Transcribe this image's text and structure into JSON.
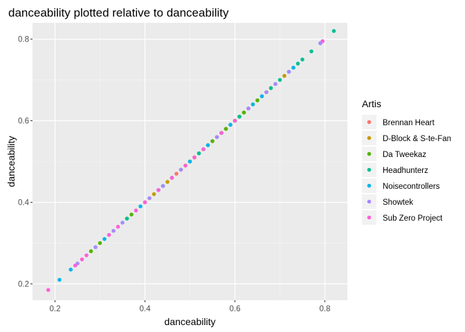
{
  "chart_data": {
    "type": "scatter",
    "title": "danceability plotted relative to danceability",
    "xlabel": "danceability",
    "ylabel": "danceability",
    "xlim": [
      0.15,
      0.85
    ],
    "ylim": [
      0.16,
      0.84
    ],
    "x_ticks": [
      0.2,
      0.4,
      0.6,
      0.8
    ],
    "y_ticks": [
      0.2,
      0.4,
      0.6,
      0.8
    ],
    "x_tick_labels": [
      "0.2",
      "0.4",
      "0.6",
      "0.8"
    ],
    "y_tick_labels": [
      "0.2",
      "0.4",
      "0.6",
      "0.8"
    ],
    "grid": true,
    "legend_title": "Artis",
    "legend_position": "right",
    "series": [
      {
        "name": "Brennan Heart",
        "color": "#F8766D",
        "points": [
          [
            0.4,
            0.4
          ],
          [
            0.47,
            0.47
          ],
          [
            0.52,
            0.52
          ],
          [
            0.55,
            0.55
          ],
          [
            0.58,
            0.58
          ],
          [
            0.61,
            0.61
          ],
          [
            0.63,
            0.63
          ],
          [
            0.66,
            0.66
          ],
          [
            0.68,
            0.68
          ],
          [
            0.5,
            0.5
          ]
        ]
      },
      {
        "name": "D-Block & S-te-Fan",
        "color": "#C49A00",
        "points": [
          [
            0.42,
            0.42
          ],
          [
            0.45,
            0.45
          ],
          [
            0.49,
            0.49
          ],
          [
            0.51,
            0.51
          ],
          [
            0.53,
            0.53
          ],
          [
            0.56,
            0.56
          ],
          [
            0.57,
            0.57
          ],
          [
            0.59,
            0.59
          ],
          [
            0.6,
            0.6
          ],
          [
            0.62,
            0.62
          ],
          [
            0.64,
            0.64
          ],
          [
            0.65,
            0.65
          ],
          [
            0.67,
            0.67
          ],
          [
            0.69,
            0.69
          ],
          [
            0.71,
            0.71
          ],
          [
            0.73,
            0.73
          ],
          [
            0.54,
            0.54
          ],
          [
            0.48,
            0.48
          ]
        ]
      },
      {
        "name": "Da Tweekaz",
        "color": "#53B400",
        "points": [
          [
            0.28,
            0.28
          ],
          [
            0.3,
            0.3
          ],
          [
            0.36,
            0.36
          ],
          [
            0.37,
            0.37
          ],
          [
            0.46,
            0.46
          ],
          [
            0.5,
            0.5
          ],
          [
            0.55,
            0.55
          ],
          [
            0.58,
            0.58
          ],
          [
            0.6,
            0.6
          ],
          [
            0.61,
            0.61
          ],
          [
            0.62,
            0.62
          ],
          [
            0.65,
            0.65
          ]
        ]
      },
      {
        "name": "Headhunterz",
        "color": "#00C094",
        "points": [
          [
            0.36,
            0.36
          ],
          [
            0.44,
            0.44
          ],
          [
            0.52,
            0.52
          ],
          [
            0.57,
            0.57
          ],
          [
            0.61,
            0.61
          ],
          [
            0.7,
            0.7
          ],
          [
            0.72,
            0.72
          ],
          [
            0.74,
            0.74
          ],
          [
            0.75,
            0.75
          ],
          [
            0.77,
            0.77
          ],
          [
            0.82,
            0.82
          ],
          [
            0.68,
            0.68
          ]
        ]
      },
      {
        "name": "Noisecontrollers",
        "color": "#00B6EB",
        "points": [
          [
            0.21,
            0.21
          ],
          [
            0.235,
            0.235
          ],
          [
            0.31,
            0.31
          ],
          [
            0.39,
            0.39
          ],
          [
            0.43,
            0.43
          ],
          [
            0.5,
            0.5
          ],
          [
            0.54,
            0.54
          ],
          [
            0.59,
            0.59
          ],
          [
            0.64,
            0.64
          ],
          [
            0.66,
            0.66
          ],
          [
            0.73,
            0.73
          ],
          [
            0.79,
            0.79
          ]
        ]
      },
      {
        "name": "Showtek",
        "color": "#A58AFF",
        "points": [
          [
            0.25,
            0.25
          ],
          [
            0.29,
            0.29
          ],
          [
            0.33,
            0.33
          ],
          [
            0.35,
            0.35
          ],
          [
            0.41,
            0.41
          ],
          [
            0.44,
            0.44
          ],
          [
            0.48,
            0.48
          ],
          [
            0.53,
            0.53
          ],
          [
            0.56,
            0.56
          ],
          [
            0.63,
            0.63
          ],
          [
            0.67,
            0.67
          ],
          [
            0.69,
            0.69
          ],
          [
            0.72,
            0.72
          ],
          [
            0.79,
            0.79
          ],
          [
            0.795,
            0.795
          ]
        ]
      },
      {
        "name": "Sub Zero Project",
        "color": "#FB61D7",
        "points": [
          [
            0.185,
            0.185
          ],
          [
            0.245,
            0.245
          ],
          [
            0.26,
            0.26
          ],
          [
            0.27,
            0.27
          ],
          [
            0.32,
            0.32
          ],
          [
            0.34,
            0.34
          ],
          [
            0.38,
            0.38
          ],
          [
            0.4,
            0.4
          ],
          [
            0.43,
            0.43
          ],
          [
            0.46,
            0.46
          ],
          [
            0.49,
            0.49
          ],
          [
            0.51,
            0.51
          ],
          [
            0.53,
            0.53
          ],
          [
            0.57,
            0.57
          ],
          [
            0.6,
            0.6
          ],
          [
            0.795,
            0.795
          ]
        ]
      }
    ]
  }
}
